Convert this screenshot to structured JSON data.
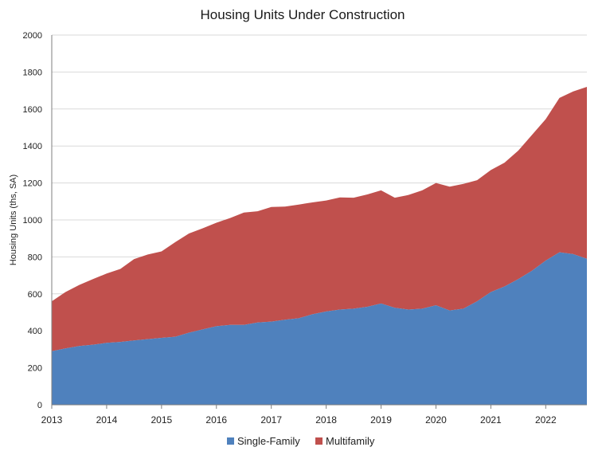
{
  "chart_data": {
    "type": "area",
    "stacked": true,
    "title": "Housing Units Under Construction",
    "xlabel": "",
    "ylabel": "Housing Units (ths, SA)",
    "ylim": [
      0,
      2000
    ],
    "yticks": [
      "0",
      "200",
      "400",
      "600",
      "800",
      "1000",
      "1200",
      "1400",
      "1600",
      "1800",
      "2000"
    ],
    "xticks": [
      "2013",
      "2014",
      "2015",
      "2016",
      "2017",
      "2018",
      "2019",
      "2020",
      "2021",
      "2022"
    ],
    "xlim": [
      2013,
      2022.75
    ],
    "grid": true,
    "legend": "bottom",
    "colors": {
      "single_family": "#4f81bd",
      "multifamily": "#c0504d"
    },
    "x": [
      2013.0,
      2013.25,
      2013.5,
      2013.75,
      2014.0,
      2014.25,
      2014.5,
      2014.75,
      2015.0,
      2015.25,
      2015.5,
      2015.75,
      2016.0,
      2016.25,
      2016.5,
      2016.75,
      2017.0,
      2017.25,
      2017.5,
      2017.75,
      2018.0,
      2018.25,
      2018.5,
      2018.75,
      2019.0,
      2019.25,
      2019.5,
      2019.75,
      2020.0,
      2020.25,
      2020.5,
      2020.75,
      2021.0,
      2021.25,
      2021.5,
      2021.75,
      2022.0,
      2022.25,
      2022.5,
      2022.75
    ],
    "series": [
      {
        "name": "Single-Family",
        "values": [
          290,
          305,
          318,
          325,
          335,
          340,
          348,
          355,
          362,
          368,
          390,
          408,
          425,
          432,
          432,
          445,
          450,
          460,
          468,
          490,
          505,
          515,
          520,
          530,
          548,
          525,
          515,
          520,
          538,
          510,
          520,
          560,
          610,
          640,
          680,
          725,
          780,
          825,
          815,
          790
        ]
      },
      {
        "name": "Multifamily",
        "values": [
          270,
          305,
          330,
          355,
          375,
          395,
          440,
          458,
          468,
          512,
          537,
          547,
          560,
          578,
          608,
          602,
          620,
          612,
          615,
          605,
          600,
          607,
          600,
          608,
          612,
          595,
          620,
          640,
          662,
          670,
          675,
          655,
          660,
          670,
          695,
          735,
          765,
          835,
          880,
          930
        ]
      }
    ]
  }
}
